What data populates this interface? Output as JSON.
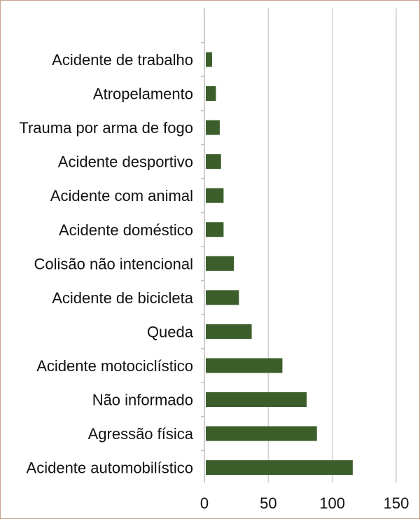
{
  "chart_data": {
    "type": "bar",
    "orientation": "horizontal",
    "title": "",
    "xlabel": "",
    "ylabel": "",
    "categories": [
      "Acidente de trabalho",
      "Atropelamento",
      "Trauma por arma de fogo",
      "Acidente desportivo",
      "Acidente com animal",
      "Acidente doméstico",
      "Colisão não intencional",
      "Acidente de bicicleta",
      "Queda",
      "Acidente motociclístico",
      "Não informado",
      "Agressão física",
      "Acidente automobilístico"
    ],
    "values": [
      6,
      9,
      12,
      13,
      15,
      15,
      23,
      27,
      37,
      61,
      80,
      88,
      116
    ],
    "xlim": [
      0,
      150
    ],
    "xticks": [
      "0",
      "50",
      "100",
      "150"
    ],
    "grid": true,
    "legend": "none",
    "colors": {
      "bar": "#3b5e2b",
      "grid": "#d0d0d0",
      "axis": "#bfbfbf",
      "border": "#c8a08c"
    }
  }
}
